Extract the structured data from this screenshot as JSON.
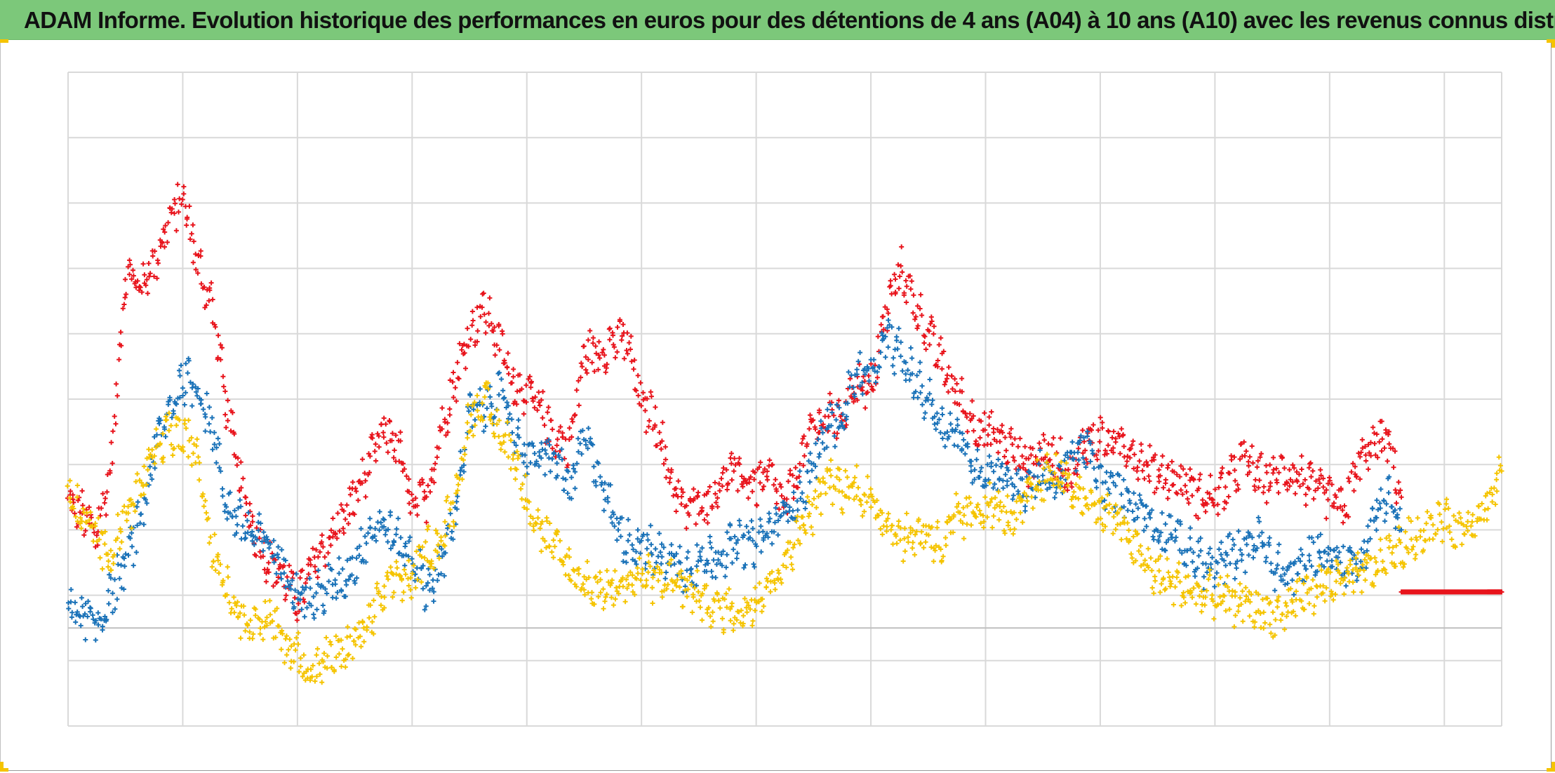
{
  "title": "ADAM Informe. Evolution historique des performances en euros pour des détentions de 4 ans (A04) à 10 ans (A10) avec les revenus connus distribués",
  "colors": {
    "title_background": "#7cc87a",
    "frame_marks": "#f5c400",
    "grid": "#d9d9d9",
    "zero_line": "#bfbfbf"
  },
  "chart_data": {
    "type": "scatter",
    "marker": "plus",
    "grid": true,
    "legend": "none",
    "x_range": [
      0,
      1000
    ],
    "ylim": [
      -150,
      850
    ],
    "series": [
      {
        "color": "#e8141c",
        "points": [
          [
            0,
            190
          ],
          [
            10,
            175
          ],
          [
            20,
            140
          ],
          [
            30,
            250
          ],
          [
            40,
            550
          ],
          [
            50,
            520
          ],
          [
            60,
            560
          ],
          [
            70,
            620
          ],
          [
            80,
            660
          ],
          [
            90,
            560
          ],
          [
            100,
            500
          ],
          [
            110,
            350
          ],
          [
            120,
            220
          ],
          [
            130,
            150
          ],
          [
            140,
            100
          ],
          [
            150,
            80
          ],
          [
            160,
            40
          ],
          [
            170,
            90
          ],
          [
            180,
            130
          ],
          [
            190,
            160
          ],
          [
            200,
            200
          ],
          [
            210,
            250
          ],
          [
            220,
            300
          ],
          [
            230,
            280
          ],
          [
            240,
            180
          ],
          [
            250,
            200
          ],
          [
            260,
            300
          ],
          [
            270,
            380
          ],
          [
            280,
            450
          ],
          [
            290,
            490
          ],
          [
            300,
            440
          ],
          [
            310,
            380
          ],
          [
            320,
            360
          ],
          [
            330,
            330
          ],
          [
            340,
            290
          ],
          [
            350,
            280
          ],
          [
            360,
            420
          ],
          [
            370,
            420
          ],
          [
            380,
            440
          ],
          [
            390,
            440
          ],
          [
            400,
            340
          ],
          [
            410,
            320
          ],
          [
            420,
            230
          ],
          [
            430,
            180
          ],
          [
            440,
            190
          ],
          [
            450,
            200
          ],
          [
            460,
            240
          ],
          [
            470,
            230
          ],
          [
            480,
            220
          ],
          [
            490,
            230
          ],
          [
            500,
            180
          ],
          [
            510,
            250
          ],
          [
            520,
            310
          ],
          [
            530,
            320
          ],
          [
            540,
            320
          ],
          [
            550,
            380
          ],
          [
            560,
            360
          ],
          [
            570,
            480
          ],
          [
            580,
            550
          ],
          [
            590,
            500
          ],
          [
            600,
            450
          ],
          [
            610,
            400
          ],
          [
            620,
            360
          ],
          [
            630,
            320
          ],
          [
            640,
            300
          ],
          [
            650,
            290
          ],
          [
            660,
            270
          ],
          [
            670,
            250
          ],
          [
            680,
            270
          ],
          [
            690,
            260
          ],
          [
            700,
            230
          ],
          [
            710,
            290
          ],
          [
            720,
            290
          ],
          [
            730,
            280
          ],
          [
            740,
            280
          ],
          [
            750,
            250
          ],
          [
            760,
            240
          ],
          [
            770,
            230
          ],
          [
            780,
            220
          ],
          [
            790,
            200
          ],
          [
            800,
            200
          ],
          [
            810,
            220
          ],
          [
            820,
            260
          ],
          [
            830,
            230
          ],
          [
            840,
            230
          ],
          [
            850,
            240
          ],
          [
            860,
            230
          ],
          [
            870,
            210
          ],
          [
            880,
            200
          ],
          [
            890,
            180
          ],
          [
            900,
            250
          ],
          [
            910,
            280
          ],
          [
            920,
            290
          ],
          [
            930,
            200
          ]
        ]
      },
      {
        "color": "#1a72b8",
        "points": [
          [
            0,
            30
          ],
          [
            10,
            20
          ],
          [
            20,
            0
          ],
          [
            30,
            50
          ],
          [
            40,
            100
          ],
          [
            50,
            160
          ],
          [
            60,
            270
          ],
          [
            70,
            330
          ],
          [
            80,
            380
          ],
          [
            90,
            370
          ],
          [
            100,
            310
          ],
          [
            110,
            190
          ],
          [
            120,
            160
          ],
          [
            130,
            140
          ],
          [
            140,
            130
          ],
          [
            150,
            90
          ],
          [
            160,
            60
          ],
          [
            170,
            40
          ],
          [
            180,
            60
          ],
          [
            190,
            70
          ],
          [
            200,
            100
          ],
          [
            210,
            150
          ],
          [
            220,
            160
          ],
          [
            230,
            130
          ],
          [
            240,
            110
          ],
          [
            250,
            60
          ],
          [
            260,
            90
          ],
          [
            270,
            180
          ],
          [
            280,
            330
          ],
          [
            290,
            330
          ],
          [
            300,
            360
          ],
          [
            310,
            310
          ],
          [
            320,
            260
          ],
          [
            330,
            260
          ],
          [
            340,
            260
          ],
          [
            350,
            210
          ],
          [
            360,
            290
          ],
          [
            370,
            240
          ],
          [
            380,
            170
          ],
          [
            390,
            130
          ],
          [
            400,
            130
          ],
          [
            410,
            110
          ],
          [
            420,
            110
          ],
          [
            430,
            90
          ],
          [
            440,
            100
          ],
          [
            450,
            110
          ],
          [
            460,
            120
          ],
          [
            470,
            130
          ],
          [
            480,
            130
          ],
          [
            490,
            150
          ],
          [
            500,
            180
          ],
          [
            510,
            200
          ],
          [
            520,
            250
          ],
          [
            530,
            310
          ],
          [
            540,
            320
          ],
          [
            550,
            390
          ],
          [
            560,
            380
          ],
          [
            570,
            440
          ],
          [
            580,
            420
          ],
          [
            590,
            380
          ],
          [
            600,
            350
          ],
          [
            610,
            310
          ],
          [
            620,
            300
          ],
          [
            630,
            250
          ],
          [
            640,
            240
          ],
          [
            650,
            240
          ],
          [
            660,
            220
          ],
          [
            670,
            210
          ],
          [
            680,
            240
          ],
          [
            690,
            220
          ],
          [
            700,
            260
          ],
          [
            710,
            280
          ],
          [
            720,
            220
          ],
          [
            730,
            210
          ],
          [
            740,
            200
          ],
          [
            750,
            180
          ],
          [
            760,
            150
          ],
          [
            770,
            150
          ],
          [
            780,
            120
          ],
          [
            790,
            100
          ],
          [
            800,
            90
          ],
          [
            810,
            110
          ],
          [
            820,
            120
          ],
          [
            830,
            140
          ],
          [
            840,
            100
          ],
          [
            850,
            80
          ],
          [
            860,
            90
          ],
          [
            870,
            120
          ],
          [
            880,
            110
          ],
          [
            890,
            100
          ],
          [
            900,
            100
          ],
          [
            910,
            160
          ],
          [
            920,
            210
          ],
          [
            930,
            150
          ]
        ]
      },
      {
        "color": "#f5c400",
        "points": [
          [
            0,
            200
          ],
          [
            10,
            170
          ],
          [
            20,
            140
          ],
          [
            30,
            110
          ],
          [
            40,
            170
          ],
          [
            50,
            210
          ],
          [
            60,
            260
          ],
          [
            70,
            300
          ],
          [
            80,
            290
          ],
          [
            90,
            270
          ],
          [
            100,
            130
          ],
          [
            110,
            70
          ],
          [
            120,
            20
          ],
          [
            130,
            10
          ],
          [
            140,
            15
          ],
          [
            150,
            -20
          ],
          [
            160,
            -40
          ],
          [
            170,
            -70
          ],
          [
            180,
            -50
          ],
          [
            190,
            -40
          ],
          [
            200,
            -20
          ],
          [
            210,
            10
          ],
          [
            220,
            50
          ],
          [
            230,
            80
          ],
          [
            240,
            70
          ],
          [
            250,
            120
          ],
          [
            260,
            130
          ],
          [
            270,
            200
          ],
          [
            280,
            320
          ],
          [
            290,
            350
          ],
          [
            300,
            300
          ],
          [
            310,
            270
          ],
          [
            320,
            200
          ],
          [
            330,
            150
          ],
          [
            340,
            120
          ],
          [
            350,
            90
          ],
          [
            360,
            70
          ],
          [
            370,
            60
          ],
          [
            380,
            60
          ],
          [
            390,
            70
          ],
          [
            400,
            80
          ],
          [
            410,
            70
          ],
          [
            420,
            80
          ],
          [
            430,
            60
          ],
          [
            440,
            50
          ],
          [
            450,
            30
          ],
          [
            460,
            30
          ],
          [
            470,
            20
          ],
          [
            480,
            50
          ],
          [
            490,
            70
          ],
          [
            500,
            100
          ],
          [
            510,
            150
          ],
          [
            520,
            180
          ],
          [
            530,
            230
          ],
          [
            540,
            210
          ],
          [
            550,
            220
          ],
          [
            560,
            190
          ],
          [
            570,
            170
          ],
          [
            580,
            140
          ],
          [
            590,
            140
          ],
          [
            600,
            150
          ],
          [
            610,
            120
          ],
          [
            620,
            170
          ],
          [
            630,
            170
          ],
          [
            640,
            190
          ],
          [
            650,
            180
          ],
          [
            660,
            160
          ],
          [
            670,
            200
          ],
          [
            680,
            230
          ],
          [
            690,
            240
          ],
          [
            700,
            210
          ],
          [
            710,
            200
          ],
          [
            720,
            180
          ],
          [
            730,
            170
          ],
          [
            740,
            140
          ],
          [
            750,
            100
          ],
          [
            760,
            80
          ],
          [
            770,
            70
          ],
          [
            780,
            60
          ],
          [
            790,
            50
          ],
          [
            800,
            50
          ],
          [
            810,
            40
          ],
          [
            820,
            40
          ],
          [
            830,
            30
          ],
          [
            840,
            20
          ],
          [
            850,
            30
          ],
          [
            860,
            50
          ],
          [
            870,
            60
          ],
          [
            880,
            70
          ],
          [
            890,
            70
          ],
          [
            900,
            80
          ],
          [
            910,
            90
          ],
          [
            920,
            110
          ],
          [
            930,
            120
          ],
          [
            940,
            140
          ],
          [
            950,
            150
          ],
          [
            960,
            170
          ],
          [
            970,
            150
          ],
          [
            980,
            170
          ],
          [
            990,
            190
          ],
          [
            1000,
            240
          ]
        ]
      },
      {
        "color": "#e8141c",
        "points": [
          [
            930,
            55
          ],
          [
            950,
            55
          ],
          [
            970,
            55
          ],
          [
            990,
            55
          ],
          [
            1000,
            55
          ]
        ]
      }
    ]
  }
}
